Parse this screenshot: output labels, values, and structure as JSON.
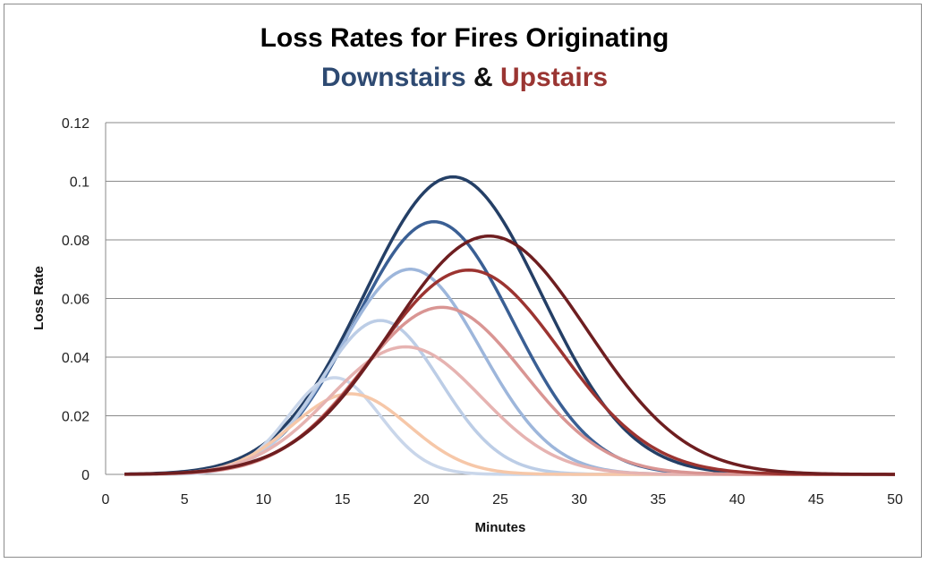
{
  "chart_data": {
    "type": "line",
    "title_line1": "Loss Rates for Fires Originating",
    "title_line2": {
      "part1": "Downstairs",
      "part2": "&",
      "part3": "Upstairs"
    },
    "colors": {
      "downstairs": "#2e4a72",
      "upstairs": "#9a3532",
      "amp": "#111111"
    },
    "xlabel": "Minutes",
    "ylabel": "Loss Rate",
    "xlim": [
      0,
      50
    ],
    "ylim": [
      0,
      0.12
    ],
    "xticks": [
      "0",
      "5",
      "10",
      "15",
      "20",
      "25",
      "30",
      "35",
      "40",
      "45",
      "50"
    ],
    "yticks": [
      "0",
      "0.02",
      "0.04",
      "0.06",
      "0.08",
      "0.1",
      "0.12"
    ],
    "grid": "horizontal",
    "legend": "none",
    "series": [
      {
        "color": "#243f66",
        "peak_x": 22.0,
        "peak_y": 0.1015,
        "sigma": 5.6
      },
      {
        "color": "#3a5f94",
        "peak_x": 20.8,
        "peak_y": 0.0862,
        "sigma": 5.0
      },
      {
        "color": "#9db6db",
        "peak_x": 19.3,
        "peak_y": 0.07,
        "sigma": 4.5
      },
      {
        "color": "#bccde6",
        "peak_x": 17.4,
        "peak_y": 0.0525,
        "sigma": 3.8
      },
      {
        "color": "#c9d6ea",
        "peak_x": 14.5,
        "peak_y": 0.033,
        "sigma": 2.9
      },
      {
        "color": "#f6c7a8",
        "peak_x": 15.5,
        "peak_y": 0.0275,
        "sigma": 3.7
      },
      {
        "color": "#e6b3b1",
        "peak_x": 19.0,
        "peak_y": 0.0435,
        "sigma": 4.8
      },
      {
        "color": "#d99593",
        "peak_x": 21.3,
        "peak_y": 0.057,
        "sigma": 5.2
      },
      {
        "color": "#9c3431",
        "peak_x": 23.0,
        "peak_y": 0.0697,
        "sigma": 5.8
      },
      {
        "color": "#6e1e20",
        "peak_x": 24.3,
        "peak_y": 0.0813,
        "sigma": 6.2
      }
    ]
  }
}
